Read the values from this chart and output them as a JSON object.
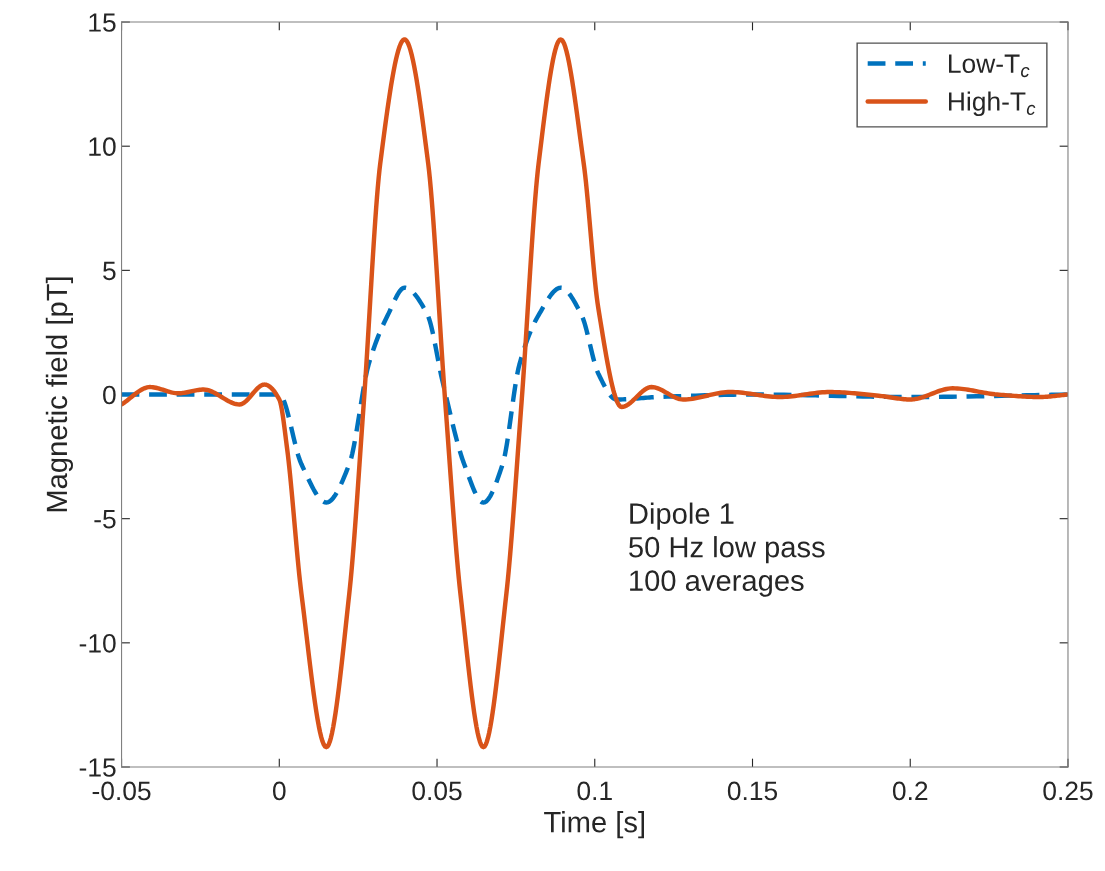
{
  "chart_data": {
    "type": "line",
    "xlabel": "Time [s]",
    "ylabel": "Magnetic field [pT]",
    "xlim": [
      -0.05,
      0.25
    ],
    "xticks": [
      -0.05,
      0,
      0.05,
      0.1,
      0.15,
      0.2,
      0.25
    ],
    "ylim": [
      -15,
      15
    ],
    "yticks": [
      -15,
      -10,
      -5,
      0,
      5,
      10,
      15
    ],
    "grid": false,
    "legend": "top right",
    "marker": "none",
    "annotations": [
      "Dipole 1\n50 Hz low pass\n100 averages"
    ],
    "series": [
      {
        "name": "Low-T$_{c}$",
        "color": "#0072bd",
        "line_style": "dashed",
        "x": [
          -0.05,
          -0.02,
          0,
          0.007,
          0.0149,
          0.0222,
          0.0283,
          0.0344,
          0.0397,
          0.047,
          0.0518,
          0.0586,
          0.0647,
          0.0708,
          0.0761,
          0.0822,
          0.0892,
          0.0958,
          0.1011,
          0.1069,
          0.12,
          0.15,
          0.2,
          0.25
        ],
        "values": [
          0,
          0,
          0,
          -2.8,
          -4.35,
          -2.8,
          1.2,
          3.2,
          4.3,
          3.2,
          0.5,
          -2.8,
          -4.35,
          -2.8,
          1.2,
          3.2,
          4.3,
          3.2,
          0.85,
          -0.2,
          -0.1,
          0,
          -0.1,
          0
        ]
      },
      {
        "name": "High-T$_{c}$",
        "color": "#d95319",
        "line_style": "solid",
        "x": [
          -0.05,
          -0.041,
          -0.032,
          -0.024,
          -0.0126,
          -0.0047,
          0,
          0.0025,
          0.007,
          0.0149,
          0.0222,
          0.0268,
          0.032,
          0.0397,
          0.0472,
          0.0526,
          0.0574,
          0.0647,
          0.072,
          0.0768,
          0.0822,
          0.0892,
          0.0965,
          0.1011,
          0.1085,
          0.118,
          0.128,
          0.143,
          0.1587,
          0.1745,
          0.19,
          0.2,
          0.2135,
          0.2275,
          0.2411,
          0.25
        ],
        "values": [
          -0.4,
          0.3,
          0.05,
          0.2,
          -0.4,
          0.4,
          -0.2,
          -2.2,
          -8,
          -14.2,
          -8,
          -0.3,
          9.3,
          14.3,
          9.3,
          -0.3,
          -8,
          -14.2,
          -8,
          -0.3,
          9.3,
          14.3,
          9.3,
          3.5,
          -0.5,
          0.3,
          -0.2,
          0.1,
          -0.1,
          0.1,
          -0.05,
          -0.2,
          0.25,
          0,
          -0.1,
          0
        ]
      }
    ]
  }
}
